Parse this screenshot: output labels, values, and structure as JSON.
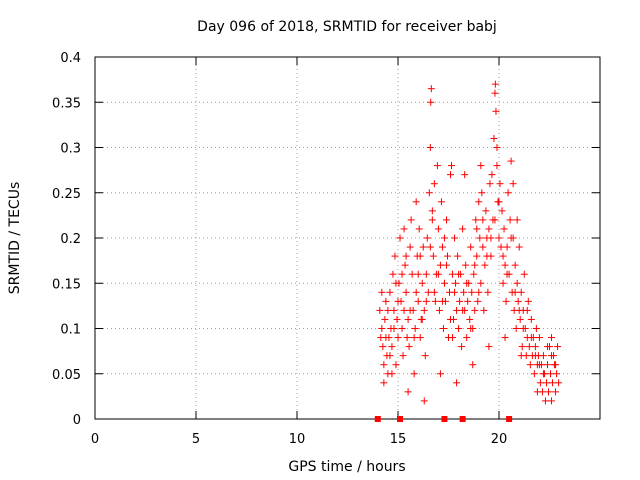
{
  "chart_data": {
    "type": "scatter",
    "title": "Day 096 of 2018, SRMTID for receiver babj",
    "xlabel": "GPS time / hours",
    "ylabel": "SRMTID / TECUs",
    "xlim": [
      0,
      25
    ],
    "ylim": [
      0,
      0.4
    ],
    "xticks": [
      0,
      5,
      10,
      15,
      20
    ],
    "yticks": [
      0,
      0.05,
      0.1,
      0.15,
      0.2,
      0.25,
      0.3,
      0.35,
      0.4
    ],
    "grid": true,
    "marker": "+",
    "color": "#ff0000",
    "points": [
      [
        14.1,
        0.12
      ],
      [
        14.15,
        0.09
      ],
      [
        14.2,
        0.1
      ],
      [
        14.25,
        0.08
      ],
      [
        14.3,
        0.06
      ],
      [
        14.35,
        0.11
      ],
      [
        14.4,
        0.13
      ],
      [
        14.45,
        0.07
      ],
      [
        14.5,
        0.05
      ],
      [
        14.55,
        0.09
      ],
      [
        14.6,
        0.14
      ],
      [
        14.65,
        0.1
      ],
      [
        14.7,
        0.08
      ],
      [
        14.75,
        0.16
      ],
      [
        14.8,
        0.12
      ],
      [
        14.85,
        0.18
      ],
      [
        14.9,
        0.06
      ],
      [
        14.95,
        0.11
      ],
      [
        15.0,
        0.09
      ],
      [
        15.05,
        0.15
      ],
      [
        15.1,
        0.2
      ],
      [
        15.15,
        0.13
      ],
      [
        15.2,
        0.1
      ],
      [
        15.25,
        0.07
      ],
      [
        15.3,
        0.12
      ],
      [
        15.35,
        0.17
      ],
      [
        15.4,
        0.14
      ],
      [
        15.45,
        0.09
      ],
      [
        15.5,
        0.11
      ],
      [
        15.55,
        0.08
      ],
      [
        15.6,
        0.19
      ],
      [
        15.65,
        0.22
      ],
      [
        15.7,
        0.16
      ],
      [
        15.75,
        0.12
      ],
      [
        15.8,
        0.05
      ],
      [
        15.85,
        0.1
      ],
      [
        15.9,
        0.14
      ],
      [
        15.95,
        0.18
      ],
      [
        16.0,
        0.13
      ],
      [
        16.05,
        0.21
      ],
      [
        16.1,
        0.09
      ],
      [
        16.15,
        0.11
      ],
      [
        16.2,
        0.15
      ],
      [
        16.25,
        0.19
      ],
      [
        16.3,
        0.12
      ],
      [
        16.35,
        0.07
      ],
      [
        16.4,
        0.16
      ],
      [
        16.45,
        0.2
      ],
      [
        16.5,
        0.14
      ],
      [
        16.55,
        0.25
      ],
      [
        16.6,
        0.3
      ],
      [
        16.62,
        0.35
      ],
      [
        16.65,
        0.365
      ],
      [
        16.7,
        0.22
      ],
      [
        16.75,
        0.18
      ],
      [
        16.8,
        0.26
      ],
      [
        16.85,
        0.13
      ],
      [
        16.9,
        0.16
      ],
      [
        16.95,
        0.28
      ],
      [
        17.0,
        0.21
      ],
      [
        17.05,
        0.12
      ],
      [
        17.1,
        0.17
      ],
      [
        17.15,
        0.24
      ],
      [
        17.2,
        0.19
      ],
      [
        17.25,
        0.1
      ],
      [
        17.3,
        0.15
      ],
      [
        17.35,
        0.13
      ],
      [
        17.4,
        0.22
      ],
      [
        17.45,
        0.18
      ],
      [
        17.5,
        0.09
      ],
      [
        17.55,
        0.14
      ],
      [
        17.6,
        0.27
      ],
      [
        17.65,
        0.28
      ],
      [
        17.7,
        0.16
      ],
      [
        17.75,
        0.11
      ],
      [
        17.8,
        0.2
      ],
      [
        17.85,
        0.15
      ],
      [
        17.9,
        0.12
      ],
      [
        17.95,
        0.18
      ],
      [
        18.0,
        0.1
      ],
      [
        18.05,
        0.13
      ],
      [
        18.1,
        0.16
      ],
      [
        18.15,
        0.08
      ],
      [
        18.2,
        0.21
      ],
      [
        18.25,
        0.14
      ],
      [
        18.3,
        0.12
      ],
      [
        18.35,
        0.17
      ],
      [
        18.4,
        0.09
      ],
      [
        18.45,
        0.13
      ],
      [
        18.5,
        0.15
      ],
      [
        18.55,
        0.11
      ],
      [
        18.6,
        0.19
      ],
      [
        18.65,
        0.14
      ],
      [
        18.7,
        0.1
      ],
      [
        18.75,
        0.16
      ],
      [
        18.8,
        0.12
      ],
      [
        18.85,
        0.22
      ],
      [
        18.9,
        0.18
      ],
      [
        18.95,
        0.13
      ],
      [
        19.0,
        0.24
      ],
      [
        19.05,
        0.2
      ],
      [
        19.1,
        0.15
      ],
      [
        19.15,
        0.25
      ],
      [
        19.2,
        0.19
      ],
      [
        19.25,
        0.12
      ],
      [
        19.3,
        0.17
      ],
      [
        19.35,
        0.23
      ],
      [
        19.4,
        0.2
      ],
      [
        19.45,
        0.14
      ],
      [
        19.5,
        0.21
      ],
      [
        19.55,
        0.26
      ],
      [
        19.6,
        0.18
      ],
      [
        19.65,
        0.27
      ],
      [
        19.7,
        0.22
      ],
      [
        19.75,
        0.31
      ],
      [
        19.8,
        0.36
      ],
      [
        19.82,
        0.37
      ],
      [
        19.85,
        0.34
      ],
      [
        19.9,
        0.28
      ],
      [
        19.95,
        0.24
      ],
      [
        20.0,
        0.2
      ],
      [
        20.05,
        0.26
      ],
      [
        20.1,
        0.19
      ],
      [
        20.15,
        0.23
      ],
      [
        20.2,
        0.15
      ],
      [
        20.25,
        0.21
      ],
      [
        20.3,
        0.17
      ],
      [
        20.35,
        0.13
      ],
      [
        20.4,
        0.19
      ],
      [
        20.45,
        0.25
      ],
      [
        20.5,
        0.16
      ],
      [
        20.55,
        0.22
      ],
      [
        20.6,
        0.285
      ],
      [
        20.65,
        0.14
      ],
      [
        20.7,
        0.2
      ],
      [
        20.75,
        0.12
      ],
      [
        20.8,
        0.17
      ],
      [
        20.85,
        0.1
      ],
      [
        20.9,
        0.15
      ],
      [
        20.95,
        0.13
      ],
      [
        21.0,
        0.19
      ],
      [
        21.05,
        0.11
      ],
      [
        21.1,
        0.14
      ],
      [
        21.15,
        0.08
      ],
      [
        21.2,
        0.12
      ],
      [
        21.25,
        0.16
      ],
      [
        21.3,
        0.1
      ],
      [
        21.35,
        0.07
      ],
      [
        21.4,
        0.09
      ],
      [
        21.45,
        0.13
      ],
      [
        21.5,
        0.08
      ],
      [
        21.55,
        0.06
      ],
      [
        21.6,
        0.11
      ],
      [
        21.65,
        0.07
      ],
      [
        21.7,
        0.09
      ],
      [
        21.75,
        0.05
      ],
      [
        21.8,
        0.08
      ],
      [
        21.85,
        0.1
      ],
      [
        21.9,
        0.06
      ],
      [
        21.95,
        0.07
      ],
      [
        22.0,
        0.09
      ],
      [
        22.05,
        0.04
      ],
      [
        22.1,
        0.06
      ],
      [
        22.15,
        0.03
      ],
      [
        22.2,
        0.07
      ],
      [
        22.25,
        0.05
      ],
      [
        22.3,
        0.02
      ],
      [
        22.35,
        0.04
      ],
      [
        22.4,
        0.06
      ],
      [
        22.45,
        0.03
      ],
      [
        22.5,
        0.08
      ],
      [
        22.55,
        0.05
      ],
      [
        22.6,
        0.09
      ],
      [
        22.65,
        0.04
      ],
      [
        22.7,
        0.07
      ],
      [
        22.75,
        0.06
      ],
      [
        22.8,
        0.03
      ],
      [
        22.85,
        0.05
      ],
      [
        22.9,
        0.08
      ],
      [
        22.95,
        0.04
      ],
      [
        14.2,
        0.14
      ],
      [
        14.4,
        0.09
      ],
      [
        14.6,
        0.07
      ],
      [
        14.8,
        0.1
      ],
      [
        15.0,
        0.13
      ],
      [
        15.2,
        0.16
      ],
      [
        15.4,
        0.18
      ],
      [
        15.6,
        0.12
      ],
      [
        15.8,
        0.09
      ],
      [
        16.0,
        0.16
      ],
      [
        16.2,
        0.11
      ],
      [
        16.4,
        0.13
      ],
      [
        16.6,
        0.19
      ],
      [
        16.8,
        0.14
      ],
      [
        17.0,
        0.16
      ],
      [
        17.2,
        0.13
      ],
      [
        17.4,
        0.17
      ],
      [
        17.6,
        0.11
      ],
      [
        17.8,
        0.14
      ],
      [
        18.0,
        0.16
      ],
      [
        18.2,
        0.12
      ],
      [
        18.4,
        0.15
      ],
      [
        18.6,
        0.1
      ],
      [
        18.8,
        0.17
      ],
      [
        19.0,
        0.14
      ],
      [
        19.2,
        0.22
      ],
      [
        19.4,
        0.18
      ],
      [
        19.6,
        0.2
      ],
      [
        19.8,
        0.22
      ],
      [
        20.0,
        0.24
      ],
      [
        20.2,
        0.18
      ],
      [
        20.4,
        0.16
      ],
      [
        20.6,
        0.2
      ],
      [
        20.8,
        0.14
      ],
      [
        21.0,
        0.12
      ],
      [
        21.2,
        0.1
      ],
      [
        21.4,
        0.12
      ],
      [
        21.6,
        0.09
      ],
      [
        21.8,
        0.07
      ],
      [
        22.0,
        0.06
      ],
      [
        22.2,
        0.05
      ],
      [
        22.4,
        0.08
      ],
      [
        22.6,
        0.07
      ],
      [
        22.8,
        0.06
      ],
      [
        14.3,
        0.04
      ],
      [
        14.5,
        0.12
      ],
      [
        14.7,
        0.05
      ],
      [
        15.5,
        0.03
      ],
      [
        16.3,
        0.02
      ],
      [
        17.1,
        0.05
      ],
      [
        17.9,
        0.04
      ],
      [
        18.7,
        0.06
      ],
      [
        19.5,
        0.08
      ],
      [
        20.3,
        0.09
      ],
      [
        21.1,
        0.07
      ],
      [
        21.9,
        0.03
      ],
      [
        22.6,
        0.02
      ],
      [
        15.9,
        0.24
      ],
      [
        16.7,
        0.23
      ],
      [
        18.3,
        0.27
      ],
      [
        19.1,
        0.28
      ],
      [
        19.9,
        0.3
      ],
      [
        20.7,
        0.26
      ],
      [
        15.3,
        0.21
      ],
      [
        16.1,
        0.18
      ],
      [
        17.3,
        0.2
      ],
      [
        18.9,
        0.21
      ],
      [
        20.9,
        0.22
      ],
      [
        14.9,
        0.15
      ],
      [
        17.7,
        0.09
      ]
    ],
    "bottom_markers": [
      14.0,
      15.1,
      17.3,
      18.2,
      20.5
    ]
  }
}
